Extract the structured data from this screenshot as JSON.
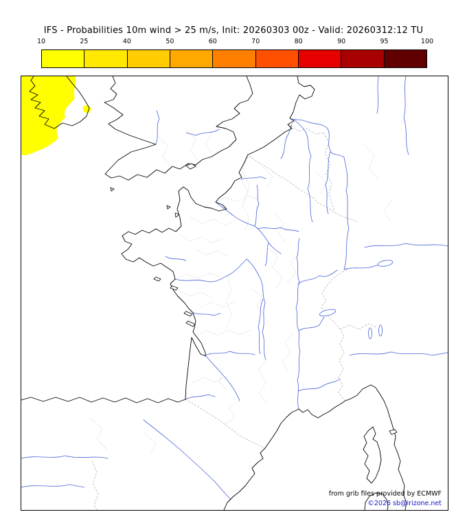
{
  "title": "IFS - Probabilities 10m wind > 25 m/s, Init: 20260303 00z - Valid: 20260312:12 TU",
  "colorbar": {
    "tick_labels": [
      "10",
      "25",
      "40",
      "50",
      "60",
      "70",
      "80",
      "90",
      "95",
      "100"
    ],
    "segment_colors": [
      "#ffff00",
      "#ffe900",
      "#ffcd00",
      "#ffa800",
      "#ff8000",
      "#ff5000",
      "#e60000",
      "#a80000",
      "#600000"
    ]
  },
  "map": {
    "attribution": "from grib files provided by ECMWF",
    "copyright": "©2026 sb@irizone.net",
    "colors": {
      "coastline": "#000000",
      "rivers": "#4663d8",
      "admin_borders": "#cfcfcf",
      "national_borders": "#b4b4b4",
      "probability_fill": "#ffff00",
      "frame": "#000000",
      "attribution_text": "#000000",
      "copyright_text": "#1414c8"
    }
  },
  "chart_data": {
    "type": "heatmap",
    "title": "IFS - Probabilities 10m wind > 25 m/s",
    "init": "20260303 00z",
    "valid": "20260312:12 TU",
    "unit": "%",
    "scale_ticks": [
      10,
      25,
      40,
      50,
      60,
      70,
      80,
      90,
      95,
      100
    ],
    "scale_colors": [
      "#ffff00",
      "#ffe900",
      "#ffcd00",
      "#ffa800",
      "#ff8000",
      "#ff5000",
      "#e60000",
      "#a80000",
      "#600000"
    ],
    "legend_position": "top",
    "regions": [
      {
        "area": "Atlantic southwest of Ireland (map top-left corner)",
        "probability_band": "10-25",
        "color": "#ffff00"
      },
      {
        "area": "St George's Channel southeast of Ireland (small patch)",
        "probability_band": "10-25",
        "color": "#ffff00"
      }
    ]
  }
}
